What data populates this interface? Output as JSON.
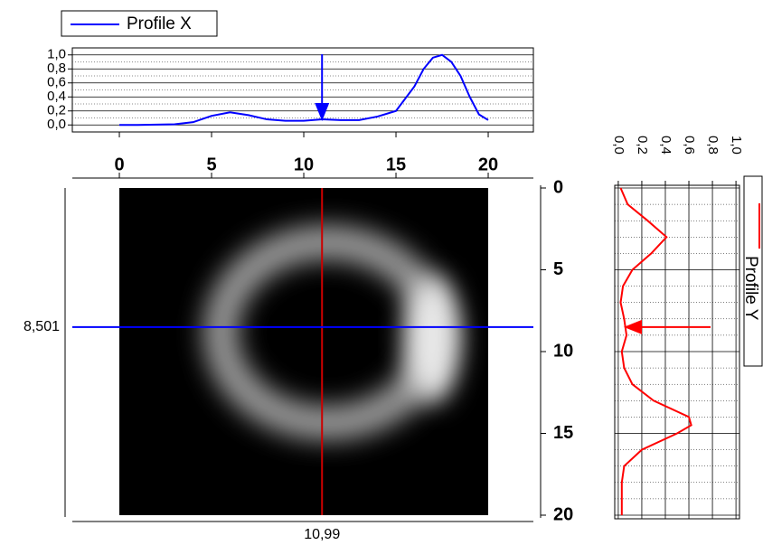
{
  "chart_data": [
    {
      "type": "line",
      "xlim": [
        -2.55,
        22.45
      ],
      "ylim": [
        -0.1,
        1.1
      ],
      "yticks": [
        {
          "value": 0,
          "label": "0,0"
        },
        {
          "value": 0.2,
          "label": "0,2"
        },
        {
          "value": 0.4,
          "label": "0,4"
        },
        {
          "value": 0.6,
          "label": "0,6"
        },
        {
          "value": 0.8,
          "label": "0,8"
        },
        {
          "value": 1,
          "label": "1,0"
        }
      ],
      "grid": true,
      "x": [
        0,
        1,
        2,
        3,
        4,
        5,
        6,
        7,
        8,
        9,
        10,
        11,
        12,
        13,
        14,
        15,
        16,
        16.5,
        17,
        17.5,
        18,
        18.5,
        19,
        19.5,
        20
      ],
      "series": [
        {
          "name": "Profile X",
          "color": "#0000ff",
          "values": [
            0.0,
            0.0,
            0.005,
            0.01,
            0.04,
            0.13,
            0.18,
            0.14,
            0.08,
            0.06,
            0.06,
            0.08,
            0.07,
            0.07,
            0.12,
            0.2,
            0.55,
            0.8,
            0.96,
            1.0,
            0.9,
            0.7,
            0.4,
            0.15,
            0.07
          ]
        }
      ]
    },
    {
      "type": "image",
      "xlim": [
        -2.55,
        22.45
      ],
      "xticks": [
        0,
        5,
        10,
        15,
        20
      ],
      "ylim": [
        0,
        20
      ],
      "yticks": [
        0,
        5,
        10,
        15,
        20
      ],
      "cursor_x": {
        "value": 10.99,
        "label": "10,99",
        "color": "#cc0000"
      },
      "cursor_y": {
        "value": 8.501,
        "label": "8,501",
        "color": "#0000ff"
      }
    },
    {
      "type": "line-vertical",
      "xlim": [
        -0.03,
        1.03
      ],
      "ylim": [
        0,
        20
      ],
      "xticks": [
        {
          "value": 0,
          "label": "0,0"
        },
        {
          "value": 0.2,
          "label": "0,2"
        },
        {
          "value": 0.4,
          "label": "0,4"
        },
        {
          "value": 0.6,
          "label": "0,6"
        },
        {
          "value": 0.8,
          "label": "0,8"
        },
        {
          "value": 1,
          "label": "1,0"
        }
      ],
      "grid": true,
      "y": [
        0,
        1,
        2,
        3,
        4,
        5,
        6,
        7,
        8,
        9,
        10,
        11,
        12,
        13,
        14,
        14.5,
        15,
        16,
        17,
        18,
        19,
        20
      ],
      "series": [
        {
          "name": "Profile Y",
          "color": "#ff0000",
          "values": [
            0.02,
            0.08,
            0.25,
            0.41,
            0.28,
            0.12,
            0.04,
            0.02,
            0.05,
            0.07,
            0.03,
            0.05,
            0.12,
            0.3,
            0.6,
            0.62,
            0.5,
            0.2,
            0.05,
            0.03,
            0.03,
            0.03
          ]
        }
      ]
    }
  ]
}
